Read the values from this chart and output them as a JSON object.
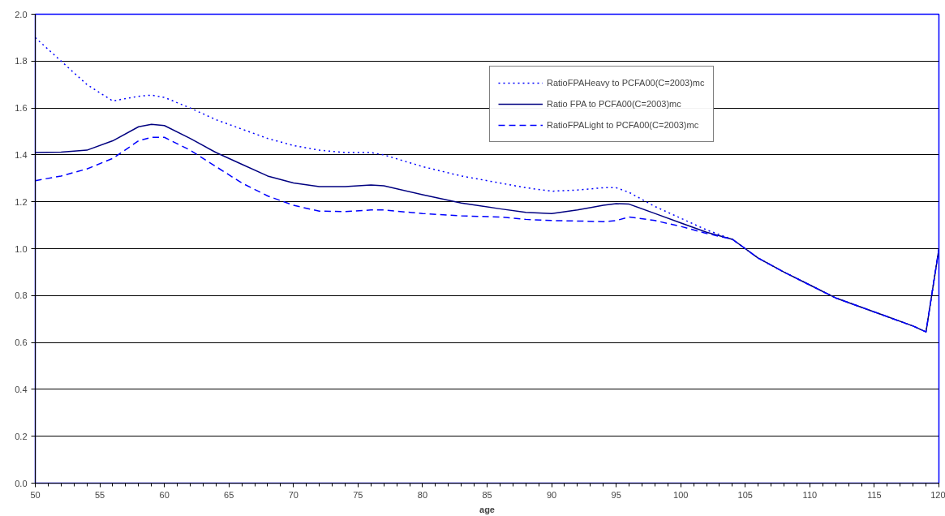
{
  "chart_data": {
    "type": "line",
    "xlabel": "age",
    "x": [
      50,
      52,
      54,
      56,
      58,
      59,
      60,
      62,
      64,
      66,
      68,
      70,
      72,
      74,
      76,
      77,
      80,
      83,
      86,
      88,
      90,
      92,
      94,
      95,
      96,
      98,
      100,
      102,
      104,
      105,
      106,
      108,
      110,
      112,
      114,
      116,
      118,
      119,
      120
    ],
    "series": [
      {
        "name": "RatioFPAHeavy to PCFA00(C=2003)mc",
        "color": "#0000ff",
        "line_style": "dotted",
        "values": [
          1.9,
          1.8,
          1.7,
          1.63,
          1.65,
          1.655,
          1.645,
          1.6,
          1.55,
          1.51,
          1.47,
          1.44,
          1.42,
          1.41,
          1.41,
          1.4,
          1.35,
          1.31,
          1.28,
          1.26,
          1.245,
          1.25,
          1.26,
          1.26,
          1.24,
          1.18,
          1.13,
          1.08,
          1.04,
          1.0,
          0.96,
          0.9,
          0.845,
          0.79,
          0.75,
          0.71,
          0.67,
          0.645,
          1.0
        ]
      },
      {
        "name": "Ratio FPA to PCFA00(C=2003)mc",
        "color": "#000080",
        "line_style": "solid",
        "values": [
          1.41,
          1.412,
          1.42,
          1.46,
          1.52,
          1.53,
          1.525,
          1.47,
          1.41,
          1.36,
          1.31,
          1.28,
          1.265,
          1.265,
          1.272,
          1.268,
          1.23,
          1.195,
          1.17,
          1.155,
          1.15,
          1.165,
          1.185,
          1.192,
          1.19,
          1.15,
          1.11,
          1.07,
          1.04,
          1.0,
          0.96,
          0.9,
          0.845,
          0.79,
          0.75,
          0.71,
          0.67,
          0.645,
          1.0
        ]
      },
      {
        "name": "RatioFPALight to PCFA00(C=2003)mc",
        "color": "#0000ff",
        "line_style": "dashed",
        "values": [
          1.29,
          1.31,
          1.34,
          1.385,
          1.46,
          1.475,
          1.475,
          1.42,
          1.35,
          1.28,
          1.225,
          1.185,
          1.16,
          1.158,
          1.165,
          1.165,
          1.15,
          1.14,
          1.135,
          1.125,
          1.12,
          1.118,
          1.115,
          1.12,
          1.135,
          1.12,
          1.095,
          1.065,
          1.04,
          1.0,
          0.96,
          0.9,
          0.845,
          0.79,
          0.75,
          0.71,
          0.67,
          0.645,
          1.0
        ]
      }
    ],
    "xlim": [
      50,
      120
    ],
    "xticks": [
      50,
      55,
      60,
      65,
      70,
      75,
      80,
      85,
      90,
      95,
      100,
      105,
      110,
      115,
      120
    ],
    "ylim": [
      0,
      2
    ],
    "yticks": [
      {
        "value": 0,
        "label": "0.0"
      },
      {
        "value": 0.2,
        "label": "0.2"
      },
      {
        "value": 0.4,
        "label": "0.4"
      },
      {
        "value": 0.6,
        "label": "0.6"
      },
      {
        "value": 0.8,
        "label": "0.8"
      },
      {
        "value": 1.0,
        "label": "1.0"
      },
      {
        "value": 1.2,
        "label": "1.2"
      },
      {
        "value": 1.4,
        "label": "1.4"
      },
      {
        "value": 1.6,
        "label": "1.6"
      },
      {
        "value": 1.8,
        "label": "1.8"
      },
      {
        "value": 2.0,
        "label": "2.0"
      }
    ],
    "grid": "y",
    "legend": "top right",
    "marker": "none"
  }
}
